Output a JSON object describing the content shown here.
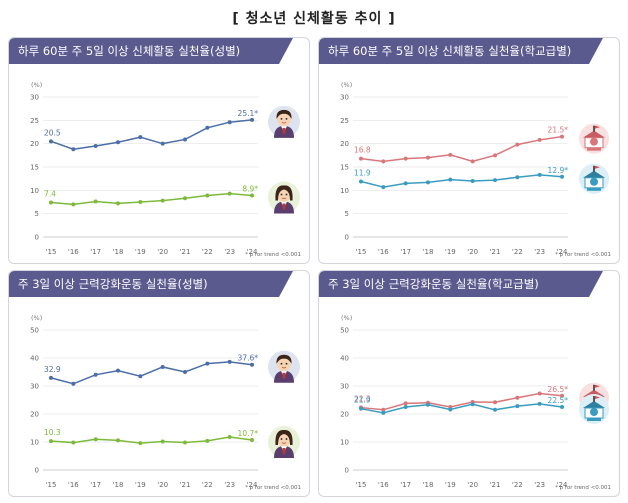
{
  "title": "[ 청소년 신체활동 추이 ]",
  "footnote": "* p for trend <0.001",
  "unit": "(%)",
  "chart_data": [
    {
      "type": "line",
      "title": "하루 60분 주 5일 이상 신체활동 실천율(성별)",
      "categories": [
        "'15",
        "'16",
        "'17",
        "'18",
        "'19",
        "'20",
        "'21",
        "'22",
        "'23",
        "'24"
      ],
      "ylim": [
        0,
        30
      ],
      "yticks": [
        0,
        5,
        10,
        15,
        20,
        25,
        30
      ],
      "ylabel": "(%)",
      "series": [
        {
          "name": "남학생",
          "color": "#4b6ea8",
          "icon": "boy-student-icon",
          "values": [
            20.5,
            18.8,
            19.5,
            20.3,
            21.4,
            20.0,
            20.9,
            23.4,
            24.6,
            25.1
          ],
          "first_label": "20.5",
          "last_label": "25.1*"
        },
        {
          "name": "여학생",
          "color": "#7db93a",
          "icon": "girl-student-icon",
          "values": [
            7.4,
            7.0,
            7.6,
            7.2,
            7.5,
            7.8,
            8.3,
            8.9,
            9.3,
            8.9
          ],
          "first_label": "7.4",
          "last_label": "8.9*"
        }
      ]
    },
    {
      "type": "line",
      "title": "하루 60분 주 5일 이상 신체활동 실천율(학교급별)",
      "categories": [
        "'15",
        "'16",
        "'17",
        "'18",
        "'19",
        "'20",
        "'21",
        "'22",
        "'23",
        "'24"
      ],
      "ylim": [
        0,
        30
      ],
      "yticks": [
        0,
        5,
        10,
        15,
        20,
        25,
        30
      ],
      "ylabel": "(%)",
      "series": [
        {
          "name": "중학교",
          "color": "#d9767a",
          "icon": "middle-school-icon",
          "values": [
            16.8,
            16.2,
            16.8,
            17.0,
            17.6,
            16.2,
            17.5,
            19.8,
            20.8,
            21.5
          ],
          "first_label": "16.8",
          "last_label": "21.5*"
        },
        {
          "name": "고등학교",
          "color": "#3a9cc0",
          "icon": "high-school-icon",
          "values": [
            11.9,
            10.7,
            11.5,
            11.7,
            12.3,
            12.0,
            12.2,
            12.8,
            13.3,
            12.9
          ],
          "first_label": "11.9",
          "last_label": "12.9*"
        }
      ]
    },
    {
      "type": "line",
      "title": "주 3일 이상 근력강화운동 실천율(성별)",
      "categories": [
        "'15",
        "'16",
        "'17",
        "'18",
        "'19",
        "'20",
        "'21",
        "'22",
        "'23",
        "'24"
      ],
      "ylim": [
        0,
        50
      ],
      "yticks": [
        0,
        10,
        20,
        30,
        40,
        50
      ],
      "ylabel": "(%)",
      "series": [
        {
          "name": "남학생",
          "color": "#4b6ea8",
          "icon": "boy-student-icon",
          "values": [
            32.9,
            30.8,
            34.0,
            35.5,
            33.5,
            36.8,
            35.0,
            38.0,
            38.6,
            37.6
          ],
          "first_label": "32.9",
          "last_label": "37.6*"
        },
        {
          "name": "여학생",
          "color": "#7db93a",
          "icon": "girl-student-icon",
          "values": [
            10.3,
            9.8,
            11.0,
            10.6,
            9.6,
            10.2,
            9.8,
            10.4,
            11.8,
            10.7
          ],
          "first_label": "10.3",
          "last_label": "10.7*"
        }
      ]
    },
    {
      "type": "line",
      "title": "주 3일 이상 근력강화운동 실천율(학교급별)",
      "categories": [
        "'15",
        "'16",
        "'17",
        "'18",
        "'19",
        "'20",
        "'21",
        "'22",
        "'23",
        "'24"
      ],
      "ylim": [
        0,
        50
      ],
      "yticks": [
        0,
        10,
        20,
        30,
        40,
        50
      ],
      "ylabel": "(%)",
      "series": [
        {
          "name": "중학교",
          "color": "#d9767a",
          "icon": "middle-school-icon",
          "values": [
            22.3,
            21.5,
            23.8,
            24.0,
            22.5,
            24.3,
            24.2,
            25.8,
            27.3,
            26.5
          ],
          "first_label": "22.3",
          "last_label": "26.5*"
        },
        {
          "name": "고등학교",
          "color": "#3a9cc0",
          "icon": "high-school-icon",
          "values": [
            21.9,
            20.4,
            22.5,
            23.3,
            21.6,
            23.5,
            21.5,
            22.8,
            23.6,
            22.5
          ],
          "first_label": "21.9",
          "last_label": "22.5*"
        }
      ]
    }
  ]
}
